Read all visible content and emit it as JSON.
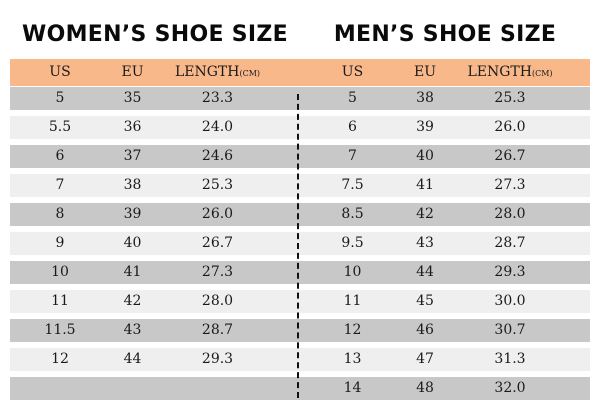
{
  "women": {
    "title": "WOMEN’S SHOE SIZE",
    "headers": {
      "us": "US",
      "eu": "EU",
      "length": "LENGTH",
      "length_unit": "(CM)"
    },
    "rows": [
      {
        "us": "5",
        "eu": "35",
        "length": "23.3"
      },
      {
        "us": "5.5",
        "eu": "36",
        "length": "24.0"
      },
      {
        "us": "6",
        "eu": "37",
        "length": "24.6"
      },
      {
        "us": "7",
        "eu": "38",
        "length": "25.3"
      },
      {
        "us": "8",
        "eu": "39",
        "length": "26.0"
      },
      {
        "us": "9",
        "eu": "40",
        "length": "26.7"
      },
      {
        "us": "10",
        "eu": "41",
        "length": "27.3"
      },
      {
        "us": "11",
        "eu": "42",
        "length": "28.0"
      },
      {
        "us": "11.5",
        "eu": "43",
        "length": "28.7"
      },
      {
        "us": "12",
        "eu": "44",
        "length": "29.3"
      }
    ]
  },
  "men": {
    "title": "MEN’S SHOE SIZE",
    "headers": {
      "us": "US",
      "eu": "EU",
      "length": "LENGTH",
      "length_unit": "(CM)"
    },
    "rows": [
      {
        "us": "5",
        "eu": "38",
        "length": "25.3"
      },
      {
        "us": "6",
        "eu": "39",
        "length": "26.0"
      },
      {
        "us": "7",
        "eu": "40",
        "length": "26.7"
      },
      {
        "us": "7.5",
        "eu": "41",
        "length": "27.3"
      },
      {
        "us": "8.5",
        "eu": "42",
        "length": "28.0"
      },
      {
        "us": "9.5",
        "eu": "43",
        "length": "28.7"
      },
      {
        "us": "10",
        "eu": "44",
        "length": "29.3"
      },
      {
        "us": "11",
        "eu": "45",
        "length": "30.0"
      },
      {
        "us": "12",
        "eu": "46",
        "length": "30.7"
      },
      {
        "us": "13",
        "eu": "47",
        "length": "31.3"
      },
      {
        "us": "14",
        "eu": "48",
        "length": "32.0"
      }
    ]
  },
  "colors": {
    "header_bg": "#f8b88a",
    "row_dark": "#c8c8c8",
    "row_light": "#efefef",
    "text": "#1a1a1a"
  }
}
